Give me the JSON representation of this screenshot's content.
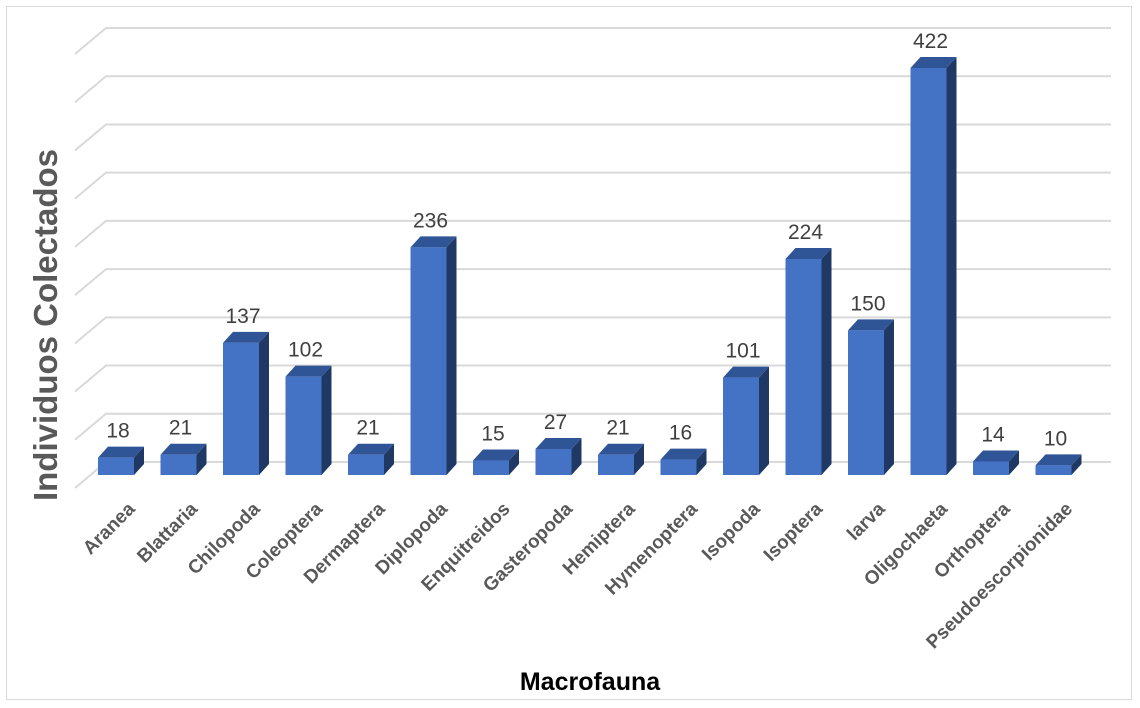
{
  "chart_data": {
    "type": "bar",
    "title": "",
    "xlabel": "Macrofauna",
    "ylabel": "Individuos Colectados",
    "ylim": [
      0,
      450
    ],
    "grid": true,
    "style": "3d-column",
    "categories": [
      "Aranea",
      "Blattaria",
      "Chilopoda",
      "Coleoptera",
      "Dermaptera",
      "Diplopoda",
      "Enquitreidos",
      "Gasteropoda",
      "Hemiptera",
      "Hymenoptera",
      "Isopoda",
      "Isoptera",
      "larva",
      "Oligochaeta",
      "Orthoptera",
      "Pseudoescorpionidae"
    ],
    "values": [
      18,
      21,
      137,
      102,
      21,
      236,
      15,
      27,
      21,
      16,
      101,
      224,
      150,
      422,
      14,
      10
    ],
    "colors": {
      "front": "#4472c4",
      "top": "#2f5597",
      "side": "#203864",
      "grid": "#d9d9d9"
    }
  }
}
